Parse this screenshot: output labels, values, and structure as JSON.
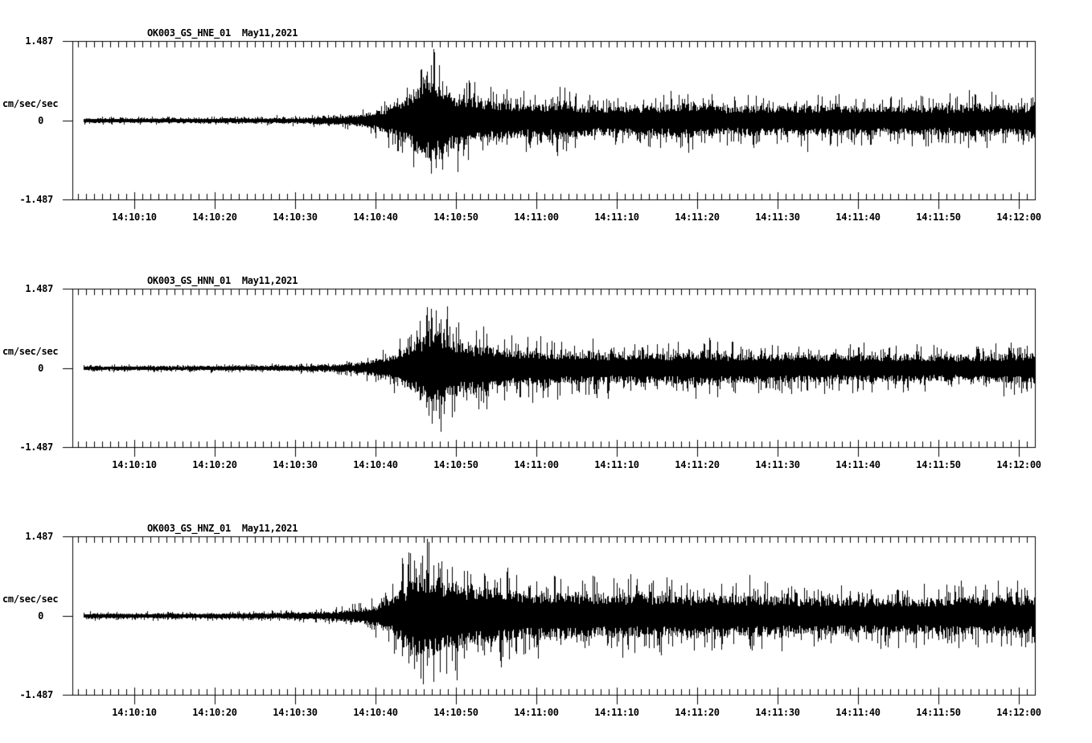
{
  "page": {
    "background": "#ffffff",
    "ink": "#000000"
  },
  "chart_data": [
    {
      "type": "line",
      "kind": "seismogram-trace",
      "title": "OK003_GS_HNE_01",
      "date": "May11,2021",
      "ylabel": "cm/sec/sec",
      "ylim": [
        -1.487,
        1.487
      ],
      "yticks": [
        "1.487",
        "0",
        "-1.487"
      ],
      "x_start": "14:10:02",
      "x_end": "14:12:02",
      "xtick_interval_sec": 10,
      "minor_tick_sec": 1,
      "xtick_labels": [
        "14:10:10",
        "14:10:20",
        "14:10:30",
        "14:10:40",
        "14:10:50",
        "14:11:00",
        "14:11:10",
        "14:11:20",
        "14:11:30",
        "14:11:40",
        "14:11:50",
        "14:12:00"
      ],
      "seed": 101,
      "envelope_t_amp": [
        [
          3.7,
          0.045
        ],
        [
          15,
          0.045
        ],
        [
          25,
          0.05
        ],
        [
          30,
          0.055
        ],
        [
          34,
          0.07
        ],
        [
          37,
          0.1
        ],
        [
          39,
          0.14
        ],
        [
          41,
          0.22
        ],
        [
          42.5,
          0.32
        ],
        [
          44,
          0.47
        ],
        [
          45,
          0.6
        ],
        [
          46,
          0.72
        ],
        [
          46.8,
          0.78
        ],
        [
          47.5,
          0.72
        ],
        [
          48.5,
          0.62
        ],
        [
          50,
          0.52
        ],
        [
          52,
          0.44
        ],
        [
          54,
          0.38
        ],
        [
          56,
          0.34
        ],
        [
          58,
          0.32
        ],
        [
          60,
          0.3
        ],
        [
          62,
          0.33
        ],
        [
          64,
          0.37
        ],
        [
          65,
          0.32
        ],
        [
          68,
          0.28
        ],
        [
          72,
          0.27
        ],
        [
          76,
          0.3
        ],
        [
          79,
          0.33
        ],
        [
          81,
          0.29
        ],
        [
          84,
          0.27
        ],
        [
          87,
          0.3
        ],
        [
          90,
          0.27
        ],
        [
          93,
          0.29
        ],
        [
          96,
          0.3
        ],
        [
          99,
          0.27
        ],
        [
          102,
          0.28
        ],
        [
          105,
          0.26
        ],
        [
          108,
          0.28
        ],
        [
          111,
          0.27
        ],
        [
          114,
          0.33
        ],
        [
          116,
          0.3
        ],
        [
          118,
          0.28
        ],
        [
          120,
          0.29
        ],
        [
          122,
          0.3
        ]
      ],
      "spikes_t_up_down": [
        [
          45.6,
          0.95,
          0.55
        ],
        [
          46.4,
          0.92,
          0.7
        ],
        [
          46.9,
          0.85,
          1.0
        ],
        [
          47.9,
          1.05,
          0.72
        ],
        [
          48.3,
          0.72,
          0.92
        ],
        [
          51,
          0.6,
          0.55
        ],
        [
          55,
          0.5,
          0.45
        ],
        [
          63.5,
          0.62,
          0.4
        ],
        [
          64.8,
          0.45,
          0.52
        ],
        [
          78.8,
          0.5,
          0.42
        ],
        [
          95.5,
          0.45,
          0.38
        ],
        [
          104,
          0.42,
          0.4
        ],
        [
          114.5,
          0.5,
          0.38
        ],
        [
          118,
          0.4,
          0.42
        ]
      ]
    },
    {
      "type": "line",
      "kind": "seismogram-trace",
      "title": "OK003_GS_HNN_01",
      "date": "May11,2021",
      "ylabel": "cm/sec/sec",
      "ylim": [
        -1.487,
        1.487
      ],
      "yticks": [
        "1.487",
        "0",
        "-1.487"
      ],
      "x_start": "14:10:02",
      "x_end": "14:12:02",
      "xtick_interval_sec": 10,
      "minor_tick_sec": 1,
      "xtick_labels": [
        "14:10:10",
        "14:10:20",
        "14:10:30",
        "14:10:40",
        "14:10:50",
        "14:11:00",
        "14:11:10",
        "14:11:20",
        "14:11:30",
        "14:11:40",
        "14:11:50",
        "14:12:00"
      ],
      "seed": 202,
      "envelope_t_amp": [
        [
          3.7,
          0.04
        ],
        [
          15,
          0.042
        ],
        [
          25,
          0.048
        ],
        [
          30,
          0.055
        ],
        [
          34,
          0.065
        ],
        [
          37,
          0.09
        ],
        [
          39,
          0.13
        ],
        [
          41,
          0.2
        ],
        [
          43,
          0.32
        ],
        [
          44.5,
          0.45
        ],
        [
          46,
          0.65
        ],
        [
          47,
          0.78
        ],
        [
          47.8,
          0.72
        ],
        [
          49,
          0.62
        ],
        [
          50.5,
          0.52
        ],
        [
          52,
          0.46
        ],
        [
          53.5,
          0.48
        ],
        [
          55,
          0.4
        ],
        [
          57,
          0.35
        ],
        [
          59,
          0.36
        ],
        [
          61,
          0.32
        ],
        [
          63,
          0.3
        ],
        [
          65,
          0.29
        ],
        [
          67,
          0.31
        ],
        [
          70,
          0.28
        ],
        [
          73,
          0.29
        ],
        [
          76,
          0.28
        ],
        [
          78,
          0.31
        ],
        [
          81,
          0.33
        ],
        [
          83,
          0.29
        ],
        [
          86,
          0.27
        ],
        [
          89,
          0.28
        ],
        [
          92,
          0.26
        ],
        [
          95,
          0.27
        ],
        [
          98,
          0.25
        ],
        [
          101,
          0.26
        ],
        [
          104,
          0.25
        ],
        [
          107,
          0.26
        ],
        [
          110,
          0.24
        ],
        [
          113,
          0.25
        ],
        [
          116,
          0.24
        ],
        [
          118,
          0.27
        ],
        [
          120,
          0.29
        ],
        [
          122,
          0.3
        ]
      ],
      "spikes_t_up_down": [
        [
          45.5,
          0.9,
          0.6
        ],
        [
          46.3,
          1.0,
          0.75
        ],
        [
          47.5,
          1.1,
          0.8
        ],
        [
          47.0,
          0.95,
          1.05
        ],
        [
          47.9,
          0.85,
          0.95
        ],
        [
          48.5,
          0.75,
          0.8
        ],
        [
          52.5,
          0.72,
          0.55
        ],
        [
          53.8,
          0.65,
          0.78
        ],
        [
          56,
          0.55,
          0.6
        ],
        [
          60,
          0.52,
          0.45
        ],
        [
          75,
          0.45,
          0.4
        ],
        [
          81.5,
          0.58,
          0.48
        ],
        [
          82.5,
          0.5,
          0.55
        ],
        [
          90,
          0.42,
          0.4
        ],
        [
          100,
          0.4,
          0.38
        ],
        [
          119,
          0.48,
          0.4
        ],
        [
          121,
          0.42,
          0.45
        ]
      ]
    },
    {
      "type": "line",
      "kind": "seismogram-trace",
      "title": "OK003_GS_HNZ_01",
      "date": "May11,2021",
      "ylabel": "cm/sec/sec",
      "ylim": [
        -1.487,
        1.487
      ],
      "yticks": [
        "1.487",
        "0",
        "-1.487"
      ],
      "x_start": "14:10:02",
      "x_end": "14:12:02",
      "xtick_interval_sec": 10,
      "minor_tick_sec": 1,
      "xtick_labels": [
        "14:10:10",
        "14:10:20",
        "14:10:30",
        "14:10:40",
        "14:10:50",
        "14:11:00",
        "14:11:10",
        "14:11:20",
        "14:11:30",
        "14:11:40",
        "14:11:50",
        "14:12:00"
      ],
      "seed": 303,
      "envelope_t_amp": [
        [
          3.7,
          0.045
        ],
        [
          15,
          0.048
        ],
        [
          25,
          0.055
        ],
        [
          30,
          0.065
        ],
        [
          33,
          0.08
        ],
        [
          36,
          0.1
        ],
        [
          38,
          0.14
        ],
        [
          40,
          0.22
        ],
        [
          42,
          0.35
        ],
        [
          43.5,
          0.55
        ],
        [
          45,
          0.7
        ],
        [
          46,
          0.78
        ],
        [
          47,
          0.74
        ],
        [
          48.5,
          0.68
        ],
        [
          50,
          0.62
        ],
        [
          52,
          0.57
        ],
        [
          54,
          0.53
        ],
        [
          56,
          0.48
        ],
        [
          58,
          0.45
        ],
        [
          60,
          0.43
        ],
        [
          62,
          0.45
        ],
        [
          64,
          0.42
        ],
        [
          66,
          0.43
        ],
        [
          68,
          0.4
        ],
        [
          70,
          0.42
        ],
        [
          72,
          0.39
        ],
        [
          74,
          0.41
        ],
        [
          76,
          0.38
        ],
        [
          78,
          0.4
        ],
        [
          80,
          0.37
        ],
        [
          82,
          0.4
        ],
        [
          84,
          0.37
        ],
        [
          86,
          0.39
        ],
        [
          88,
          0.36
        ],
        [
          90,
          0.38
        ],
        [
          92,
          0.35
        ],
        [
          94,
          0.36
        ],
        [
          96,
          0.34
        ],
        [
          98,
          0.35
        ],
        [
          100,
          0.33
        ],
        [
          102,
          0.34
        ],
        [
          104,
          0.33
        ],
        [
          106,
          0.34
        ],
        [
          108,
          0.35
        ],
        [
          110,
          0.34
        ],
        [
          112,
          0.36
        ],
        [
          114,
          0.38
        ],
        [
          116,
          0.36
        ],
        [
          118,
          0.37
        ],
        [
          120,
          0.38
        ],
        [
          122,
          0.36
        ]
      ],
      "spikes_t_up_down": [
        [
          43.3,
          1.1,
          0.75
        ],
        [
          44.1,
          1.2,
          0.9
        ],
        [
          44.8,
          1.05,
          1.0
        ],
        [
          45.6,
          1.0,
          1.18
        ],
        [
          46.4,
          1.45,
          0.95
        ],
        [
          47.2,
          0.95,
          1.25
        ],
        [
          48.0,
          0.9,
          1.05
        ],
        [
          49.5,
          0.92,
          0.85
        ],
        [
          51,
          0.85,
          0.8
        ],
        [
          53.5,
          0.8,
          0.75
        ],
        [
          55.5,
          0.72,
          0.85
        ],
        [
          57.5,
          0.78,
          0.7
        ],
        [
          60,
          0.65,
          0.6
        ],
        [
          63,
          0.7,
          0.55
        ],
        [
          66,
          0.6,
          0.62
        ],
        [
          70,
          0.62,
          0.58
        ],
        [
          74,
          0.55,
          0.6
        ],
        [
          78,
          0.58,
          0.52
        ],
        [
          83,
          0.6,
          0.65
        ],
        [
          87,
          0.52,
          0.55
        ],
        [
          90.5,
          0.48,
          0.68
        ],
        [
          95,
          0.5,
          0.48
        ],
        [
          100,
          0.45,
          0.5
        ],
        [
          105,
          0.48,
          0.45
        ],
        [
          110,
          0.5,
          0.46
        ],
        [
          113,
          0.55,
          0.48
        ],
        [
          116,
          0.5,
          0.52
        ],
        [
          119,
          0.52,
          0.48
        ],
        [
          121,
          0.48,
          0.5
        ]
      ]
    }
  ]
}
